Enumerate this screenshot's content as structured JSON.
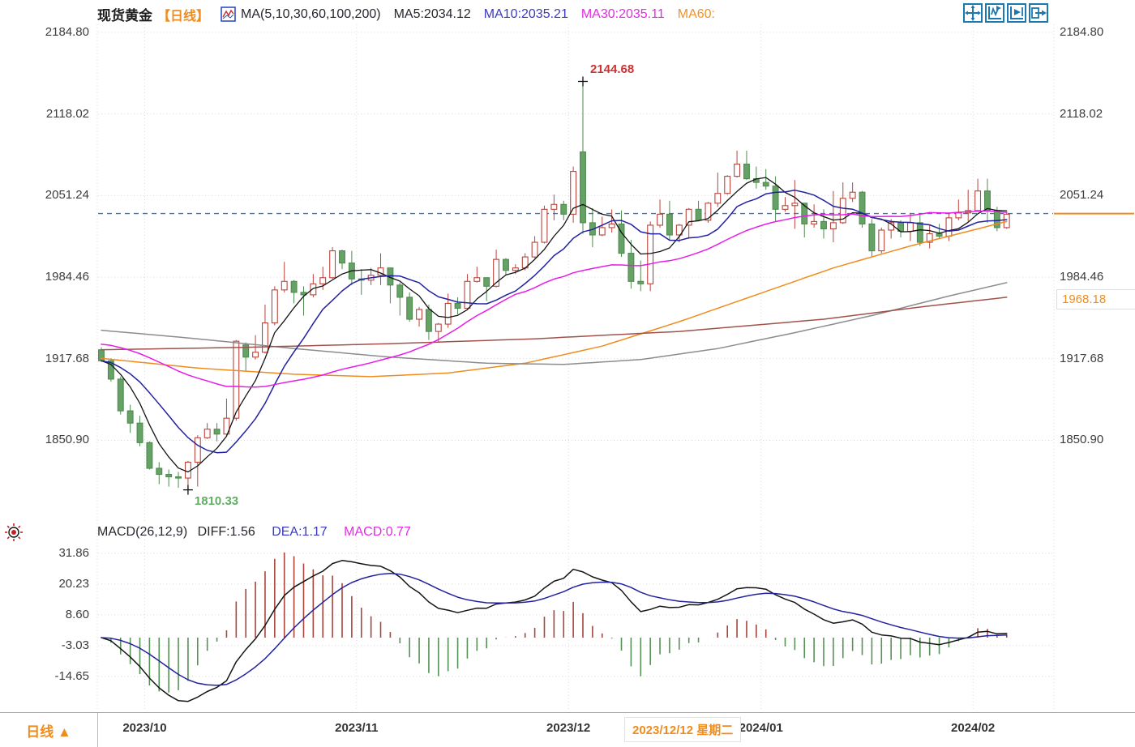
{
  "header": {
    "symbol": "现货黄金",
    "period_tag": "【日线】",
    "ma_settings": "MA(5,10,30,60,100,200)",
    "ma5_label": "MA5:2034.12",
    "ma10_label": "MA10:2035.21",
    "ma30_label": "MA30:2035.11",
    "ma60_label": "MA60:",
    "toolbar_icons": [
      "move-crosshair",
      "compress-time-axis",
      "expand-time-axis",
      "jump-to-latest"
    ]
  },
  "main_chart": {
    "y_axis_labels": [
      "2184.80",
      "2118.02",
      "2051.24",
      "1984.46",
      "1917.68",
      "1850.90"
    ],
    "high_annotation": "2144.68",
    "low_annotation": "1810.33",
    "price_marker": "1968.18"
  },
  "macd": {
    "settings": "MACD(26,12,9)",
    "diff_label": "DIFF:1.56",
    "dea_label": "DEA:1.17",
    "macd_label": "MACD:0.77",
    "y_axis_labels": [
      "31.86",
      "20.23",
      "8.60",
      "-3.03",
      "-14.65"
    ]
  },
  "bottom_bar": {
    "period_button": "日线 ▲",
    "date_labels": [
      "2023/10",
      "2023/11",
      "2023/12",
      "2024/01",
      "2024/02"
    ],
    "date_tooltip": "2023/12/12 星期二"
  },
  "colors": {
    "accent_orange": "#f08c1e",
    "up": "#b8453b",
    "down_fill": "#66a165",
    "down_stroke": "#4f8a4f",
    "ma5": "#141414",
    "ma10": "#2222a0",
    "ma30": "#e81ce8",
    "ma60": "#f08c1e",
    "ma100": "#8c8c8c",
    "ma200": "#a0524a",
    "grid": "#d9d9d9",
    "axis_text": "#3c3c3c",
    "price_line": "#2b7bd4",
    "hist_up": "#a8453c",
    "hist_down": "#569256",
    "diff_line": "#141414",
    "dea_line": "#2222a0",
    "high_text": "#cc3333",
    "low_text": "#5fae64",
    "toolbar_blue": "#1e78b0"
  },
  "chart_data": {
    "type": "candlestick",
    "title": "现货黄金 日线 (spot gold daily)",
    "price_ticks": [
      2184.8,
      2118.02,
      2051.24,
      1984.46,
      1917.68,
      1850.9
    ],
    "macd_ticks": [
      31.86,
      20.23,
      8.6,
      -3.03,
      -14.65
    ],
    "last_price": 2036.5,
    "high_marker": {
      "bar": 50,
      "price": 2144.68
    },
    "low_marker": {
      "bar": 9,
      "price": 1810.33
    },
    "price_marker_value": 1968.18,
    "legend": [
      "MA5",
      "MA10",
      "MA30",
      "MA60",
      "MA100",
      "MA200"
    ],
    "candles": [
      [
        "2023/09/25",
        1925,
        1927,
        1915,
        1916
      ],
      [
        "2023/09/26",
        1916,
        1918,
        1899,
        1901
      ],
      [
        "2023/09/27",
        1901,
        1903,
        1872,
        1875
      ],
      [
        "2023/09/28",
        1875,
        1880,
        1857,
        1865
      ],
      [
        "2023/09/29",
        1865,
        1871,
        1846,
        1849
      ],
      [
        "2023/10/02",
        1849,
        1850,
        1827,
        1828
      ],
      [
        "2023/10/03",
        1828,
        1833,
        1815,
        1823
      ],
      [
        "2023/10/04",
        1823,
        1827,
        1813,
        1821
      ],
      [
        "2023/10/05",
        1821,
        1825,
        1812,
        1820
      ],
      [
        "2023/10/06",
        1820,
        1834,
        1810.33,
        1833
      ],
      [
        "2023/10/09",
        1833,
        1855,
        1813,
        1853
      ],
      [
        "2023/10/10",
        1853,
        1865,
        1852,
        1860
      ],
      [
        "2023/10/11",
        1860,
        1865,
        1850,
        1856
      ],
      [
        "2023/10/12",
        1856,
        1885,
        1854,
        1869
      ],
      [
        "2023/10/13",
        1869,
        1933,
        1867,
        1932
      ],
      [
        "2023/10/16",
        1929,
        1931,
        1908,
        1919
      ],
      [
        "2023/10/17",
        1919,
        1937,
        1917,
        1923
      ],
      [
        "2023/10/18",
        1923,
        1962,
        1922,
        1947
      ],
      [
        "2023/10/19",
        1947,
        1977,
        1945,
        1974
      ],
      [
        "2023/10/20",
        1974,
        1997,
        1972,
        1981
      ],
      [
        "2023/10/23",
        1981,
        1982,
        1963,
        1972
      ],
      [
        "2023/10/24",
        1972,
        1977,
        1953,
        1970
      ],
      [
        "2023/10/25",
        1970,
        1987,
        1968,
        1979
      ],
      [
        "2023/10/26",
        1979,
        1993,
        1974,
        1984
      ],
      [
        "2023/10/27",
        1984,
        2009,
        1983,
        2006
      ],
      [
        "2023/10/30",
        2006,
        2007,
        1991,
        1996
      ],
      [
        "2023/10/31",
        1996,
        2006,
        1978,
        1983
      ],
      [
        "2023/11/01",
        1983,
        1991,
        1970,
        1982
      ],
      [
        "2023/11/02",
        1982,
        1992,
        1978,
        1986
      ],
      [
        "2023/11/03",
        1986,
        2004,
        1978,
        1992
      ],
      [
        "2023/11/06",
        1992,
        1992,
        1963,
        1978
      ],
      [
        "2023/11/07",
        1978,
        1980,
        1953,
        1968
      ],
      [
        "2023/11/08",
        1968,
        1972,
        1948,
        1950
      ],
      [
        "2023/11/09",
        1950,
        1960,
        1944,
        1958
      ],
      [
        "2023/11/10",
        1958,
        1962,
        1933,
        1940
      ],
      [
        "2023/11/13",
        1940,
        1947,
        1931,
        1946
      ],
      [
        "2023/11/14",
        1946,
        1971,
        1943,
        1963
      ],
      [
        "2023/11/15",
        1963,
        1968,
        1954,
        1959
      ],
      [
        "2023/11/16",
        1959,
        1987,
        1958,
        1981
      ],
      [
        "2023/11/17",
        1981,
        1993,
        1980,
        1984
      ],
      [
        "2023/11/20",
        1984,
        1984,
        1965,
        1977
      ],
      [
        "2023/11/21",
        1977,
        2007,
        1976,
        1999
      ],
      [
        "2023/11/22",
        1999,
        2000,
        1986,
        1990
      ],
      [
        "2023/11/23",
        1990,
        1995,
        1987,
        1992
      ],
      [
        "2023/11/24",
        1992,
        2004,
        1990,
        2001
      ],
      [
        "2023/11/27",
        2001,
        2018,
        2000,
        2013
      ],
      [
        "2023/11/28",
        2013,
        2043,
        2012,
        2040
      ],
      [
        "2023/11/29",
        2040,
        2052,
        2031,
        2044
      ],
      [
        "2023/11/30",
        2044,
        2047,
        2031,
        2036
      ],
      [
        "2023/12/01",
        2036,
        2075,
        2029,
        2071
      ],
      [
        "2023/12/04",
        2087,
        2144.68,
        2020,
        2029
      ],
      [
        "2023/12/05",
        2029,
        2041,
        2009,
        2019
      ],
      [
        "2023/12/06",
        2019,
        2034,
        2018,
        2025
      ],
      [
        "2023/12/07",
        2025,
        2040,
        2021,
        2028
      ],
      [
        "2023/12/08",
        2028,
        2039,
        2001,
        2004
      ],
      [
        "2023/12/11",
        2004,
        2015,
        1975,
        1981
      ],
      [
        "2023/12/12",
        1981,
        1998,
        1973,
        1979
      ],
      [
        "2023/12/13",
        1979,
        2030,
        1973,
        2027
      ],
      [
        "2023/12/14",
        2027,
        2048,
        2025,
        2036
      ],
      [
        "2023/12/15",
        2036,
        2047,
        2015,
        2019
      ],
      [
        "2023/12/18",
        2019,
        2028,
        2013,
        2027
      ],
      [
        "2023/12/19",
        2027,
        2041,
        2016,
        2040
      ],
      [
        "2023/12/20",
        2040,
        2047,
        2030,
        2031
      ],
      [
        "2023/12/21",
        2031,
        2046,
        2029,
        2045
      ],
      [
        "2023/12/22",
        2045,
        2070,
        2042,
        2053
      ],
      [
        "2023/12/26",
        2053,
        2068,
        2052,
        2067
      ],
      [
        "2023/12/27",
        2067,
        2088,
        2066,
        2077
      ],
      [
        "2023/12/28",
        2077,
        2088,
        2064,
        2065
      ],
      [
        "2023/12/29",
        2065,
        2075,
        2057,
        2062
      ],
      [
        "2024/01/02",
        2062,
        2073,
        2056,
        2059
      ],
      [
        "2024/01/03",
        2059,
        2067,
        2030,
        2040
      ],
      [
        "2024/01/04",
        2040,
        2050,
        2038,
        2043
      ],
      [
        "2024/01/05",
        2043,
        2064,
        2024,
        2045
      ],
      [
        "2024/01/08",
        2045,
        2045,
        2017,
        2028
      ],
      [
        "2024/01/09",
        2028,
        2044,
        2025,
        2030
      ],
      [
        "2024/01/10",
        2030,
        2040,
        2016,
        2024
      ],
      [
        "2024/01/11",
        2024,
        2055,
        2013,
        2029
      ],
      [
        "2024/01/12",
        2029,
        2062,
        2028,
        2049
      ],
      [
        "2024/01/15",
        2049,
        2062,
        2046,
        2054
      ],
      [
        "2024/01/16",
        2054,
        2055,
        2025,
        2028
      ],
      [
        "2024/01/17",
        2028,
        2032,
        2001,
        2006
      ],
      [
        "2024/01/18",
        2006,
        2025,
        2004,
        2023
      ],
      [
        "2024/01/19",
        2023,
        2032,
        2016,
        2029
      ],
      [
        "2024/01/22",
        2029,
        2031,
        2017,
        2022
      ],
      [
        "2024/01/23",
        2022,
        2037,
        2014,
        2029
      ],
      [
        "2024/01/24",
        2029,
        2036,
        2010,
        2013
      ],
      [
        "2024/01/25",
        2013,
        2027,
        2008,
        2020
      ],
      [
        "2024/01/26",
        2020,
        2028,
        2016,
        2018
      ],
      [
        "2024/01/29",
        2018,
        2037,
        2014,
        2033
      ],
      [
        "2024/01/30",
        2033,
        2048,
        2031,
        2037
      ],
      [
        "2024/01/31",
        2037,
        2056,
        2030,
        2039
      ],
      [
        "2024/02/01",
        2039,
        2065,
        2038,
        2055
      ],
      [
        "2024/02/02",
        2055,
        2065,
        2029,
        2039
      ],
      [
        "2024/02/05",
        2039,
        2042,
        2022,
        2025
      ],
      [
        "2024/02/06",
        2025,
        2038,
        2024,
        2036
      ]
    ],
    "ma_computed": [
      {
        "name": "MA5",
        "period": 5,
        "seed": 1916,
        "color_key": "ma5"
      },
      {
        "name": "MA10",
        "period": 10,
        "seed": 1916,
        "color_key": "ma10"
      },
      {
        "name": "MA30",
        "period": 30,
        "seed": 1930,
        "color_key": "ma30"
      }
    ],
    "ma_overlays": [
      {
        "name": "MA60",
        "color_key": "ma60",
        "points": [
          [
            0,
            1918
          ],
          [
            10,
            1910
          ],
          [
            20,
            1905
          ],
          [
            28,
            1903
          ],
          [
            36,
            1906
          ],
          [
            44,
            1914
          ],
          [
            52,
            1928
          ],
          [
            60,
            1948
          ],
          [
            68,
            1970
          ],
          [
            76,
            1992
          ],
          [
            84,
            2010
          ],
          [
            90,
            2022
          ],
          [
            94,
            2030
          ]
        ]
      },
      {
        "name": "MA100",
        "color_key": "ma100",
        "points": [
          [
            0,
            1941
          ],
          [
            10,
            1934
          ],
          [
            20,
            1926
          ],
          [
            30,
            1919
          ],
          [
            40,
            1914
          ],
          [
            48,
            1913
          ],
          [
            56,
            1917
          ],
          [
            64,
            1926
          ],
          [
            72,
            1939
          ],
          [
            80,
            1953
          ],
          [
            88,
            1969
          ],
          [
            94,
            1980
          ]
        ]
      },
      {
        "name": "MA200",
        "color_key": "ma200",
        "points": [
          [
            0,
            1925
          ],
          [
            15,
            1927
          ],
          [
            30,
            1930
          ],
          [
            45,
            1934
          ],
          [
            60,
            1940
          ],
          [
            75,
            1950
          ],
          [
            85,
            1960
          ],
          [
            94,
            1968
          ]
        ]
      }
    ],
    "macd_params": {
      "fast": 12,
      "slow": 26,
      "signal": 9,
      "hist_mult": 2
    }
  }
}
